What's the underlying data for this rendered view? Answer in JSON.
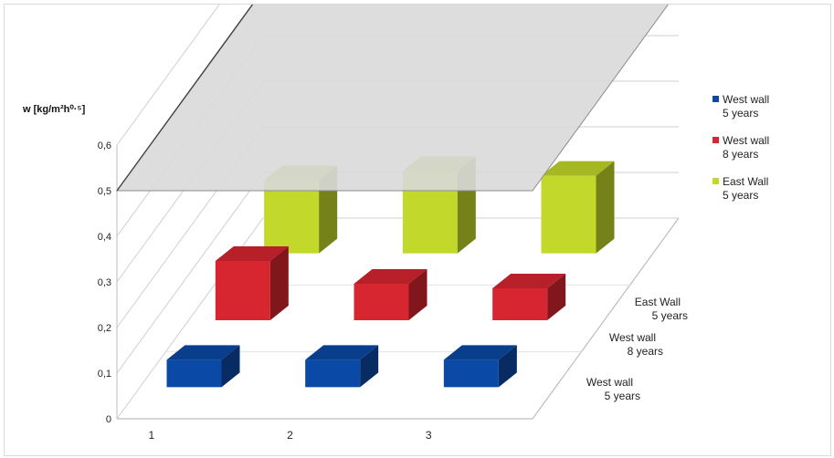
{
  "chart_data": {
    "type": "bar",
    "subtype": "3d-column",
    "ylabel": "w [kg/m²h⁰·⁵]",
    "ylim": [
      0,
      0.6
    ],
    "yticks": [
      "0",
      "0,1",
      "0,2",
      "0,3",
      "0,4",
      "0,5",
      "0,6"
    ],
    "categories": [
      "1",
      "2",
      "3"
    ],
    "series": [
      {
        "name": "West wall\n5 years",
        "color": "#0b49a6",
        "values": [
          0.06,
          0.06,
          0.06
        ]
      },
      {
        "name": "West wall\n8 years",
        "color": "#d7262f",
        "values": [
          0.13,
          0.08,
          0.07
        ]
      },
      {
        "name": "East Wall\n5 years",
        "color": "#c2d82a",
        "values": [
          0.16,
          0.18,
          0.17
        ]
      }
    ],
    "legend": "right",
    "grid": true,
    "plane": {
      "value": 0.5,
      "color": "#d9d9d9"
    }
  }
}
